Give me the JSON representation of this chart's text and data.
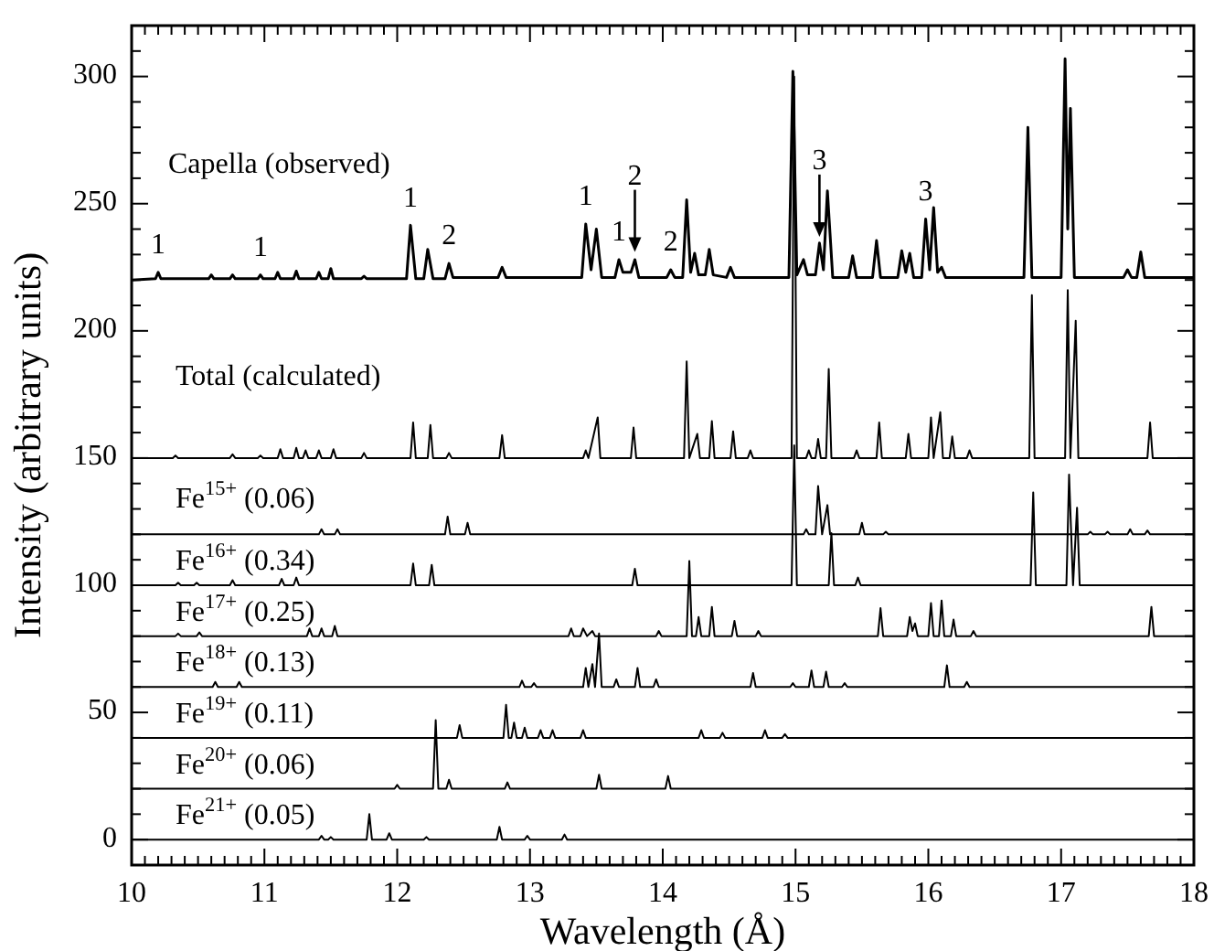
{
  "chart_data": {
    "type": "line",
    "xlabel": "Wavelength (Å)",
    "ylabel": "Intensity (arbitrary units)",
    "xlim": [
      10,
      18
    ],
    "ylim": [
      -10,
      320
    ],
    "xticks": [
      10,
      {
        "value": 10.1,
        "label": null
      },
      {
        "value": 10.2,
        "label": null
      },
      {
        "value": 10.3,
        "label": null
      },
      {
        "value": 10.4,
        "label": null
      },
      {
        "value": 10.5,
        "label": null
      },
      {
        "value": 10.6,
        "label": null
      },
      {
        "value": 10.7,
        "label": null
      },
      {
        "value": 10.8,
        "label": null
      },
      {
        "value": 10.9,
        "label": null
      },
      11,
      {
        "value": 11.1,
        "label": null
      },
      {
        "value": 11.2,
        "label": null
      },
      {
        "value": 11.3,
        "label": null
      },
      {
        "value": 11.4,
        "label": null
      },
      {
        "value": 11.5,
        "label": null
      },
      {
        "value": 11.6,
        "label": null
      },
      {
        "value": 11.7,
        "label": null
      },
      {
        "value": 11.8,
        "label": null
      },
      {
        "value": 11.9,
        "label": null
      },
      12,
      {
        "value": 12.1,
        "label": null
      },
      {
        "value": 12.2,
        "label": null
      },
      {
        "value": 12.3,
        "label": null
      },
      {
        "value": 12.4,
        "label": null
      },
      {
        "value": 12.5,
        "label": null
      },
      {
        "value": 12.6,
        "label": null
      },
      {
        "value": 12.7,
        "label": null
      },
      {
        "value": 12.8,
        "label": null
      },
      {
        "value": 12.9,
        "label": null
      },
      13,
      {
        "value": 13.1,
        "label": null
      },
      {
        "value": 13.2,
        "label": null
      },
      {
        "value": 13.3,
        "label": null
      },
      {
        "value": 13.4,
        "label": null
      },
      {
        "value": 13.5,
        "label": null
      },
      {
        "value": 13.6,
        "label": null
      },
      {
        "value": 13.7,
        "label": null
      },
      {
        "value": 13.8,
        "label": null
      },
      {
        "value": 13.9,
        "label": null
      },
      14,
      {
        "value": 14.1,
        "label": null
      },
      {
        "value": 14.2,
        "label": null
      },
      {
        "value": 14.3,
        "label": null
      },
      {
        "value": 14.4,
        "label": null
      },
      {
        "value": 14.5,
        "label": null
      },
      {
        "value": 14.6,
        "label": null
      },
      {
        "value": 14.7,
        "label": null
      },
      {
        "value": 14.8,
        "label": null
      },
      {
        "value": 14.9,
        "label": null
      },
      15,
      {
        "value": 15.1,
        "label": null
      },
      {
        "value": 15.2,
        "label": null
      },
      {
        "value": 15.3,
        "label": null
      },
      {
        "value": 15.4,
        "label": null
      },
      {
        "value": 15.5,
        "label": null
      },
      {
        "value": 15.6,
        "label": null
      },
      {
        "value": 15.7,
        "label": null
      },
      {
        "value": 15.8,
        "label": null
      },
      {
        "value": 15.9,
        "label": null
      },
      16,
      {
        "value": 16.1,
        "label": null
      },
      {
        "value": 16.2,
        "label": null
      },
      {
        "value": 16.3,
        "label": null
      },
      {
        "value": 16.4,
        "label": null
      },
      {
        "value": 16.5,
        "label": null
      },
      {
        "value": 16.6,
        "label": null
      },
      {
        "value": 16.7,
        "label": null
      },
      {
        "value": 16.8,
        "label": null
      },
      {
        "value": 16.9,
        "label": null
      },
      17,
      {
        "value": 17.1,
        "label": null
      },
      {
        "value": 17.2,
        "label": null
      },
      {
        "value": 17.3,
        "label": null
      },
      {
        "value": 17.4,
        "label": null
      },
      {
        "value": 17.5,
        "label": null
      },
      {
        "value": 17.6,
        "label": null
      },
      {
        "value": 17.7,
        "label": null
      },
      {
        "value": 17.8,
        "label": null
      },
      {
        "value": 17.9,
        "label": null
      },
      18
    ],
    "yticks": [
      {
        "value": -10,
        "label": null
      },
      0,
      {
        "value": 10,
        "label": null
      },
      {
        "value": 20,
        "label": null
      },
      {
        "value": 30,
        "label": null
      },
      {
        "value": 40,
        "label": null
      },
      50,
      {
        "value": 60,
        "label": null
      },
      {
        "value": 70,
        "label": null
      },
      {
        "value": 80,
        "label": null
      },
      {
        "value": 90,
        "label": null
      },
      100,
      {
        "value": 110,
        "label": null
      },
      {
        "value": 120,
        "label": null
      },
      {
        "value": 130,
        "label": null
      },
      {
        "value": 140,
        "label": null
      },
      150,
      {
        "value": 160,
        "label": null
      },
      {
        "value": 170,
        "label": null
      },
      {
        "value": 180,
        "label": null
      },
      {
        "value": 190,
        "label": null
      },
      200,
      {
        "value": 210,
        "label": null
      },
      {
        "value": 220,
        "label": null
      },
      {
        "value": 230,
        "label": null
      },
      {
        "value": 240,
        "label": null
      },
      250,
      {
        "value": 260,
        "label": null
      },
      {
        "value": 270,
        "label": null
      },
      {
        "value": 280,
        "label": null
      },
      {
        "value": 290,
        "label": null
      },
      300,
      {
        "value": 310,
        "label": null
      }
    ],
    "marker": "none",
    "annotations": [
      {
        "text": "1",
        "x": 10.2,
        "y": 223
      },
      {
        "text": "1",
        "x": 10.97,
        "y": 222
      },
      {
        "text": "1",
        "x": 12.1,
        "y": 241.5
      },
      {
        "text": "2",
        "x": 12.39,
        "y": 226.5
      },
      {
        "text": "1",
        "x": 13.42,
        "y": 242
      },
      {
        "text": "1",
        "x": 13.67,
        "y": 228
      },
      {
        "text": "2",
        "x": 13.79,
        "y": 231
      },
      {
        "text": "2",
        "x": 14.06,
        "y": 224
      },
      {
        "text": "3",
        "x": 15.18,
        "y": 237
      },
      {
        "text": "3",
        "x": 15.98,
        "y": 244
      }
    ],
    "series": [
      {
        "name": "Capella (observed)",
        "color": "#000000",
        "x": [
          10,
          10.18,
          10.2,
          10.22,
          10.58,
          10.6,
          10.62,
          10.74,
          10.76,
          10.78,
          10.95,
          10.97,
          10.99,
          11.08,
          11.1,
          11.12,
          11.22,
          11.24,
          11.26,
          11.39,
          11.41,
          11.43,
          11.48,
          11.5,
          11.52,
          11.73,
          11.75,
          11.77,
          12.07,
          12.1,
          12.14,
          12.2,
          12.23,
          12.27,
          12.36,
          12.39,
          12.42,
          12.76,
          12.79,
          12.82,
          13.39,
          13.42,
          13.46,
          13.5,
          13.54,
          13.64,
          13.67,
          13.7,
          13.76,
          13.79,
          13.82,
          14.03,
          14.06,
          14.09,
          14.15,
          14.18,
          14.21,
          14.24,
          14.27,
          14.32,
          14.35,
          14.38,
          14.48,
          14.51,
          14.54,
          14.95,
          14.98,
          15.01,
          15.06,
          15.09,
          15.15,
          15.18,
          15.21,
          15.24,
          15.28,
          15.4,
          15.43,
          15.46,
          15.58,
          15.61,
          15.64,
          15.77,
          15.8,
          15.83,
          15.86,
          15.89,
          15.95,
          15.98,
          16.01,
          16.04,
          16.07,
          16.1,
          16.13,
          16.72,
          16.75,
          16.78,
          17.0,
          17.03,
          17.05,
          17.07,
          17.1,
          17.47,
          17.5,
          17.53,
          17.57,
          17.6,
          17.63,
          18
        ],
        "values": [
          220,
          220.5,
          223,
          220.5,
          220.5,
          222,
          220.5,
          220.5,
          222,
          220.5,
          220.5,
          222,
          220.5,
          220.5,
          223,
          220.5,
          220.5,
          223.5,
          220.5,
          220.5,
          223,
          220.5,
          220.5,
          224.5,
          220.5,
          220.5,
          221.5,
          220.5,
          220.5,
          241.5,
          220.5,
          220.5,
          232,
          220.5,
          220.5,
          226.5,
          221,
          221,
          225,
          221,
          221,
          242,
          224,
          240,
          221,
          221,
          228,
          223,
          223,
          228,
          221,
          221,
          224,
          221,
          221,
          251.5,
          223,
          230.5,
          222,
          222,
          232,
          222,
          221,
          225,
          221,
          221,
          302,
          222,
          228,
          222,
          222,
          234.5,
          224,
          255,
          221,
          221,
          229.5,
          221,
          221,
          235.5,
          221,
          221,
          231.5,
          223,
          230.5,
          221,
          221,
          244,
          224,
          248.5,
          223,
          225,
          221,
          221,
          280,
          221,
          221,
          307,
          240,
          287.5,
          221,
          221,
          224,
          221,
          221,
          231,
          221,
          221
        ]
      },
      {
        "name": "Total (calculated)",
        "color": "#000000",
        "x": [
          10,
          10.31,
          10.33,
          10.35,
          10.74,
          10.76,
          10.78,
          10.95,
          10.97,
          10.99,
          11.1,
          11.12,
          11.14,
          11.22,
          11.24,
          11.26,
          11.29,
          11.31,
          11.33,
          11.39,
          11.41,
          11.43,
          11.5,
          11.52,
          11.54,
          11.73,
          11.75,
          11.77,
          12.1,
          12.12,
          12.14,
          12.23,
          12.25,
          12.27,
          12.37,
          12.39,
          12.41,
          12.77,
          12.79,
          12.81,
          13.4,
          13.42,
          13.44,
          13.51,
          13.53,
          13.76,
          13.78,
          13.8,
          14.16,
          14.18,
          14.2,
          14.26,
          14.28,
          14.35,
          14.37,
          14.39,
          14.51,
          14.53,
          14.55,
          14.64,
          14.66,
          14.68,
          14.97,
          14.99,
          15.01,
          15.08,
          15.1,
          15.12,
          15.15,
          15.17,
          15.19,
          15.23,
          15.25,
          15.27,
          15.44,
          15.46,
          15.48,
          15.61,
          15.63,
          15.65,
          15.83,
          15.85,
          15.87,
          16.0,
          16.02,
          16.04,
          16.09,
          16.11,
          16.16,
          16.18,
          16.2,
          16.29,
          16.31,
          16.33,
          16.76,
          16.78,
          16.8,
          17.03,
          17.05,
          17.07,
          17.11,
          17.13,
          17.65,
          17.67,
          17.69,
          18
        ],
        "values": [
          150,
          150,
          151,
          150,
          150,
          151.5,
          150,
          150,
          151,
          150,
          150,
          153.5,
          150,
          150,
          154,
          150,
          150,
          153,
          150,
          150,
          153,
          150,
          150,
          153.5,
          150,
          150,
          152,
          150,
          150,
          164,
          150,
          150,
          163,
          150,
          150,
          152,
          150,
          150,
          159,
          150,
          150,
          153,
          150,
          166,
          150,
          150,
          162,
          150,
          150,
          188,
          150,
          159.5,
          150,
          150,
          164.5,
          150,
          150,
          160.5,
          150,
          150,
          153,
          150,
          150,
          300,
          150,
          150,
          153,
          150,
          150,
          157.5,
          150,
          150,
          185,
          150,
          150,
          153,
          150,
          150,
          164,
          150,
          150,
          159.5,
          150,
          150,
          166,
          150,
          168,
          150,
          150,
          158.5,
          150,
          150,
          153,
          150,
          150,
          214,
          150,
          150,
          216,
          150,
          204,
          150,
          150,
          164,
          150,
          150
        ]
      },
      {
        "name": "Fe$^{15+}$ (0.06)",
        "color": "#000000",
        "x": [
          10,
          11.41,
          11.43,
          11.45,
          11.53,
          11.55,
          11.57,
          12.36,
          12.38,
          12.4,
          12.51,
          12.53,
          12.55,
          15.06,
          15.08,
          15.1,
          15.15,
          15.17,
          15.2,
          15.24,
          15.26,
          15.48,
          15.5,
          15.52,
          15.66,
          15.68,
          15.7,
          17.2,
          17.22,
          17.24,
          17.33,
          17.35,
          17.37,
          17.5,
          17.52,
          17.54,
          17.63,
          17.65,
          17.67,
          18
        ],
        "values": [
          120,
          120,
          122,
          120,
          120,
          122,
          120,
          120,
          127,
          120,
          120,
          124.5,
          120,
          120,
          122,
          120,
          120,
          139,
          120,
          131.5,
          120,
          120,
          124.5,
          120,
          120,
          121,
          120,
          120,
          121,
          120,
          120,
          121,
          120,
          120,
          122,
          120,
          120,
          121.5,
          120,
          120
        ]
      },
      {
        "name": "Fe$^{16+}$ (0.34)",
        "color": "#000000",
        "x": [
          10,
          10.33,
          10.35,
          10.37,
          10.47,
          10.49,
          10.51,
          10.74,
          10.76,
          10.78,
          11.11,
          11.13,
          11.15,
          11.22,
          11.24,
          11.26,
          12.1,
          12.12,
          12.14,
          12.24,
          12.26,
          12.28,
          13.77,
          13.79,
          13.81,
          14.97,
          14.99,
          15.01,
          15.25,
          15.27,
          15.29,
          15.45,
          15.47,
          15.49,
          16.77,
          16.79,
          16.81,
          17.04,
          17.06,
          17.09,
          17.12,
          17.14,
          18
        ],
        "values": [
          100,
          100,
          101,
          100,
          100,
          101,
          100,
          100,
          102,
          100,
          100,
          102.5,
          100,
          100,
          103,
          100,
          100,
          108.5,
          100,
          100,
          108,
          100,
          100,
          106.5,
          100,
          100,
          155,
          100,
          100,
          120.5,
          100,
          100,
          103,
          100,
          100,
          136.5,
          100,
          100,
          143.5,
          100,
          130.5,
          100,
          100
        ]
      },
      {
        "name": "Fe$^{17+}$ (0.25)",
        "color": "#000000",
        "x": [
          10,
          10.33,
          10.35,
          10.37,
          10.49,
          10.51,
          10.53,
          11.32,
          11.34,
          11.36,
          11.41,
          11.43,
          11.45,
          11.51,
          11.53,
          11.55,
          13.29,
          13.31,
          13.33,
          13.38,
          13.4,
          13.43,
          13.47,
          13.49,
          13.95,
          13.97,
          13.99,
          14.18,
          14.2,
          14.22,
          14.25,
          14.27,
          14.29,
          14.35,
          14.37,
          14.39,
          14.52,
          14.54,
          14.56,
          14.7,
          14.72,
          14.74,
          15.62,
          15.64,
          15.66,
          15.84,
          15.86,
          15.88,
          15.9,
          15.92,
          16.0,
          16.02,
          16.04,
          16.08,
          16.1,
          16.12,
          16.17,
          16.19,
          16.21,
          16.32,
          16.34,
          16.36,
          17.66,
          17.68,
          17.7,
          18
        ],
        "values": [
          80,
          80,
          81,
          80,
          80,
          81.5,
          80,
          80,
          83,
          80,
          80,
          83,
          80,
          80,
          84,
          80,
          80,
          83,
          80,
          80,
          83,
          80,
          82,
          80,
          80,
          82,
          80,
          80,
          109.5,
          80,
          80,
          87.5,
          80,
          80,
          91.5,
          80,
          80,
          86,
          80,
          80,
          82,
          80,
          80,
          91,
          80,
          80,
          87.5,
          82,
          85,
          80,
          80,
          93,
          80,
          80,
          94,
          80,
          80,
          86.5,
          80,
          80,
          82,
          80,
          80,
          91.5,
          80,
          80
        ]
      },
      {
        "name": "Fe$^{18+}$ (0.13)",
        "color": "#000000",
        "x": [
          10,
          10.61,
          10.63,
          10.65,
          10.79,
          10.81,
          10.83,
          12.92,
          12.94,
          12.96,
          13.01,
          13.03,
          13.05,
          13.4,
          13.42,
          13.44,
          13.47,
          13.49,
          13.52,
          13.54,
          13.63,
          13.65,
          13.67,
          13.79,
          13.81,
          13.83,
          13.93,
          13.95,
          13.97,
          14.66,
          14.68,
          14.7,
          14.96,
          14.98,
          15.0,
          15.1,
          15.12,
          15.14,
          15.21,
          15.23,
          15.25,
          15.35,
          15.37,
          15.39,
          16.12,
          16.14,
          16.16,
          16.27,
          16.29,
          16.31,
          18
        ],
        "values": [
          60,
          60,
          62,
          60,
          60,
          62,
          60,
          60,
          62.5,
          60,
          60,
          61.5,
          60,
          60,
          67.5,
          60,
          69,
          60,
          81,
          60,
          60,
          63,
          60,
          60,
          67.5,
          60,
          60,
          63,
          60,
          60,
          65.5,
          60,
          60,
          61.5,
          60,
          60,
          66.5,
          60,
          60,
          66,
          60,
          60,
          61.5,
          60,
          60,
          68.5,
          60,
          60,
          62,
          60,
          60
        ]
      },
      {
        "name": "Fe$^{19+}$ (0.11)",
        "color": "#000000",
        "x": [
          10,
          12.45,
          12.47,
          12.49,
          12.8,
          12.82,
          12.84,
          12.86,
          12.88,
          12.9,
          12.94,
          12.96,
          12.98,
          13.06,
          13.08,
          13.1,
          13.15,
          13.17,
          13.19,
          13.38,
          13.4,
          13.42,
          14.27,
          14.29,
          14.31,
          14.43,
          14.45,
          14.47,
          14.75,
          14.77,
          14.79,
          14.9,
          14.92,
          14.94,
          18
        ],
        "values": [
          40,
          40,
          45,
          40,
          40,
          53,
          40,
          40,
          46,
          40,
          40,
          44,
          40,
          40,
          43,
          40,
          40,
          43,
          40,
          40,
          43,
          40,
          40,
          43,
          40,
          40,
          42,
          40,
          40,
          43,
          40,
          40,
          41.5,
          40,
          40
        ]
      },
      {
        "name": "Fe$^{20+}$ (0.06)",
        "color": "#000000",
        "x": [
          10,
          11.98,
          12.0,
          12.02,
          12.27,
          12.29,
          12.31,
          12.37,
          12.39,
          12.41,
          12.81,
          12.83,
          12.85,
          13.5,
          13.52,
          13.54,
          14.02,
          14.04,
          14.06,
          18
        ],
        "values": [
          20,
          20,
          21.5,
          20,
          20,
          47,
          20,
          20,
          23.5,
          20,
          20,
          22.5,
          20,
          20,
          25.5,
          20,
          20,
          25,
          20,
          20
        ]
      },
      {
        "name": "Fe$^{21+}$ (0.05)",
        "color": "#000000",
        "x": [
          10,
          11.41,
          11.43,
          11.45,
          11.48,
          11.5,
          11.52,
          11.77,
          11.79,
          11.81,
          11.92,
          11.94,
          11.96,
          12.2,
          12.22,
          12.24,
          12.75,
          12.77,
          12.79,
          12.96,
          12.98,
          13.0,
          13.24,
          13.26,
          13.28,
          18
        ],
        "values": [
          0,
          0,
          1.5,
          0,
          0,
          1,
          0,
          0,
          10,
          0,
          0,
          2.5,
          0,
          0,
          1,
          0,
          0,
          5,
          0,
          0,
          1.5,
          0,
          0,
          2,
          0,
          0
        ]
      }
    ]
  }
}
